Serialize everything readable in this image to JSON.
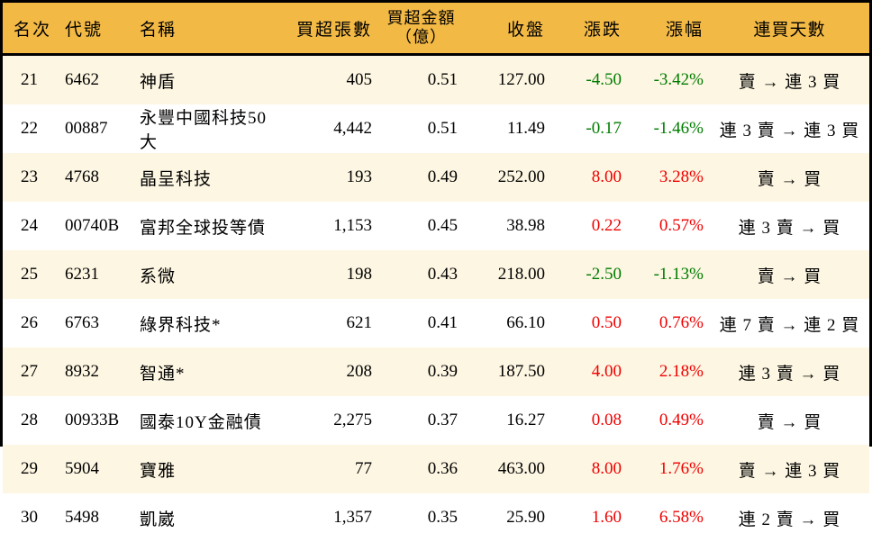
{
  "table": {
    "headers": {
      "rank": "名次",
      "code": "代號",
      "name": "名稱",
      "volume": "買超張數",
      "amount_line1": "買超金額",
      "amount_line2": "（億）",
      "close": "收盤",
      "change": "漲跌",
      "pct": "漲幅",
      "streak": "連買天數"
    }
  },
  "colors": {
    "header_bg": "#F3B945",
    "row_stripe": "#FDF6E2",
    "row_white": "#FFFFFF",
    "up_red": "#EF0000",
    "down_green": "#007C00",
    "border": "#000000",
    "text": "#000000"
  },
  "chart_data": {
    "type": "table",
    "columns": [
      "名次",
      "代號",
      "名稱",
      "買超張數",
      "買超金額(億)",
      "收盤",
      "漲跌",
      "漲幅",
      "連買天數"
    ],
    "rows": [
      {
        "rank": "21",
        "code": "6462",
        "name": "神盾",
        "volume": "405",
        "amount": "0.51",
        "close": "127.00",
        "change": "-4.50",
        "pct": "-3.42%",
        "streak": "賣 → 連 3 買",
        "trend": "down"
      },
      {
        "rank": "22",
        "code": "00887",
        "name": "永豐中國科技50大",
        "volume": "4,442",
        "amount": "0.51",
        "close": "11.49",
        "change": "-0.17",
        "pct": "-1.46%",
        "streak": "連 3 賣 → 連 3 買",
        "trend": "down"
      },
      {
        "rank": "23",
        "code": "4768",
        "name": "晶呈科技",
        "volume": "193",
        "amount": "0.49",
        "close": "252.00",
        "change": "8.00",
        "pct": "3.28%",
        "streak": "賣 → 買",
        "trend": "up"
      },
      {
        "rank": "24",
        "code": "00740B",
        "name": "富邦全球投等債",
        "volume": "1,153",
        "amount": "0.45",
        "close": "38.98",
        "change": "0.22",
        "pct": "0.57%",
        "streak": "連 3 賣 → 買",
        "trend": "up"
      },
      {
        "rank": "25",
        "code": "6231",
        "name": "系微",
        "volume": "198",
        "amount": "0.43",
        "close": "218.00",
        "change": "-2.50",
        "pct": "-1.13%",
        "streak": "賣 → 買",
        "trend": "down"
      },
      {
        "rank": "26",
        "code": "6763",
        "name": "綠界科技*",
        "volume": "621",
        "amount": "0.41",
        "close": "66.10",
        "change": "0.50",
        "pct": "0.76%",
        "streak": "連 7 賣 → 連 2 買",
        "trend": "up"
      },
      {
        "rank": "27",
        "code": "8932",
        "name": "智通*",
        "volume": "208",
        "amount": "0.39",
        "close": "187.50",
        "change": "4.00",
        "pct": "2.18%",
        "streak": "連 3 賣 → 買",
        "trend": "up"
      },
      {
        "rank": "28",
        "code": "00933B",
        "name": "國泰10Y金融債",
        "volume": "2,275",
        "amount": "0.37",
        "close": "16.27",
        "change": "0.08",
        "pct": "0.49%",
        "streak": "賣 → 買",
        "trend": "up"
      },
      {
        "rank": "29",
        "code": "5904",
        "name": "寶雅",
        "volume": "77",
        "amount": "0.36",
        "close": "463.00",
        "change": "8.00",
        "pct": "1.76%",
        "streak": "賣 → 連 3 買",
        "trend": "up"
      },
      {
        "rank": "30",
        "code": "5498",
        "name": "凱崴",
        "volume": "1,357",
        "amount": "0.35",
        "close": "25.90",
        "change": "1.60",
        "pct": "6.58%",
        "streak": "連 2 賣 → 買",
        "trend": "up"
      }
    ]
  }
}
